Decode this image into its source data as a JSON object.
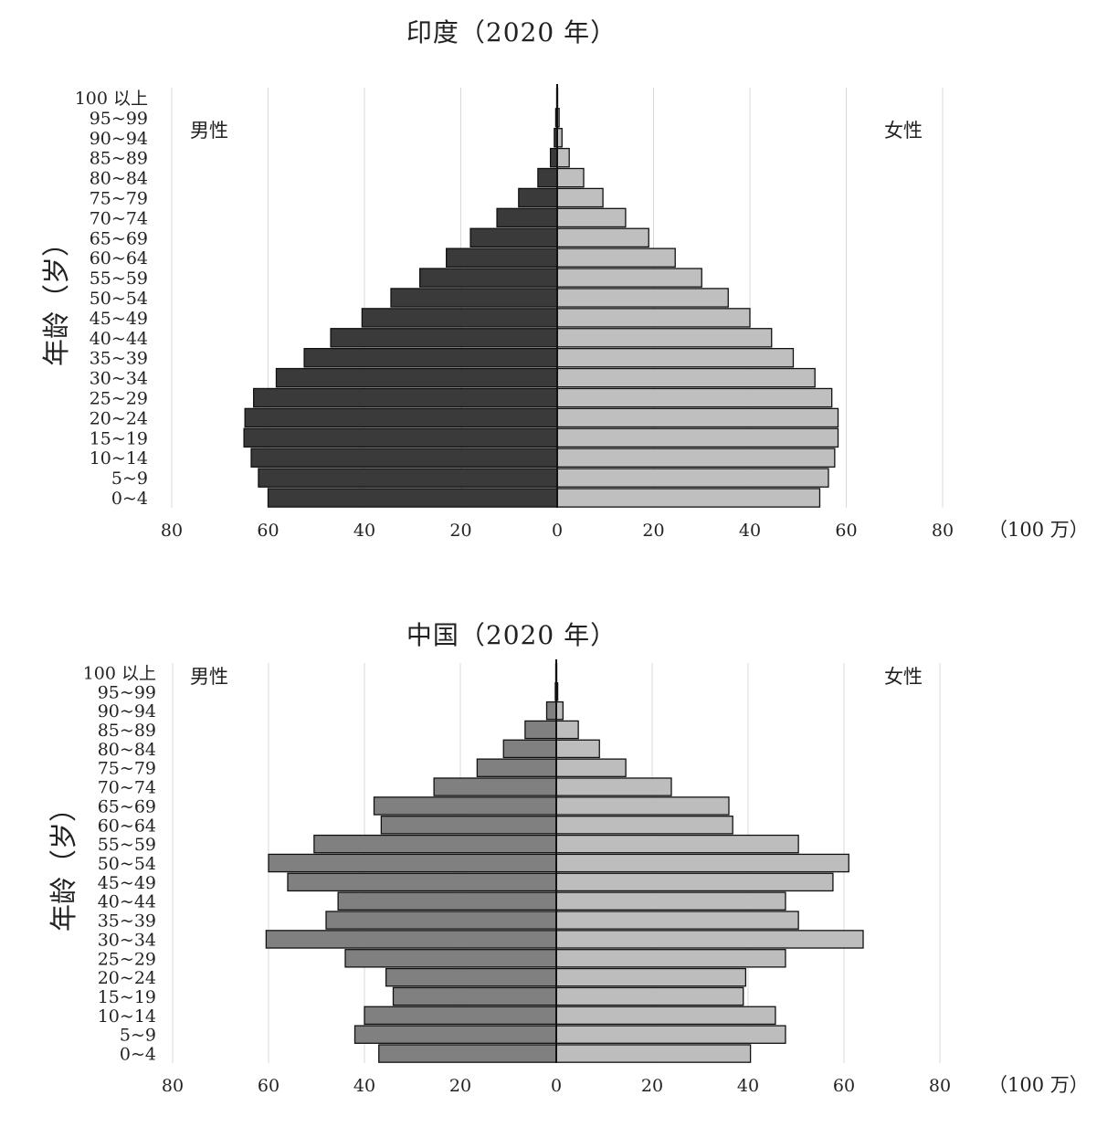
{
  "chart_data": [
    {
      "type": "bar",
      "orientation": "horizontal-population-pyramid",
      "title": "印度（2020 年）",
      "ylabel": "年龄（岁）",
      "unit": "（100 万）",
      "left_label": "男性",
      "right_label": "女性",
      "xlim": [
        -80,
        80
      ],
      "x_ticks": [
        "80",
        "60",
        "40",
        "20",
        "0",
        "20",
        "40",
        "60",
        "80"
      ],
      "grid": true,
      "categories": [
        "100 以上",
        "95~99",
        "90~94",
        "85~89",
        "80~84",
        "75~79",
        "70~74",
        "65~69",
        "60~64",
        "55~59",
        "50~54",
        "45~49",
        "40~44",
        "35~39",
        "30~34",
        "25~29",
        "20~24",
        "15~19",
        "10~14",
        "5~9",
        "0~4"
      ],
      "series": [
        {
          "name": "男性",
          "color": "#3a3a3a",
          "values": [
            0.1,
            0.3,
            0.6,
            1.4,
            4,
            8,
            12.5,
            18,
            23,
            28.5,
            34.5,
            40.5,
            47,
            52.5,
            58.3,
            63,
            64.8,
            65,
            63.5,
            62,
            60
          ]
        },
        {
          "name": "女性",
          "color": "#bfbfbf",
          "values": [
            0.1,
            0.4,
            1,
            2.5,
            5.5,
            9.5,
            14.2,
            19,
            24.5,
            30,
            35.5,
            40,
            44.5,
            49,
            53.5,
            57,
            58.3,
            58.3,
            57.6,
            56.3,
            54.5
          ]
        }
      ]
    },
    {
      "type": "bar",
      "orientation": "horizontal-population-pyramid",
      "title": "中国（2020 年）",
      "ylabel": "年龄（岁）",
      "unit": "（100 万）",
      "left_label": "男性",
      "right_label": "女性",
      "xlim": [
        -80,
        80
      ],
      "x_ticks": [
        "80",
        "60",
        "40",
        "20",
        "0",
        "20",
        "40",
        "60",
        "80"
      ],
      "grid": true,
      "categories": [
        "100 以上",
        "95~99",
        "90~94",
        "85~89",
        "80~84",
        "75~79",
        "70~74",
        "65~69",
        "60~64",
        "55~59",
        "50~54",
        "45~49",
        "40~44",
        "35~39",
        "30~34",
        "25~29",
        "20~24",
        "15~19",
        "10~14",
        "5~9",
        "0~4"
      ],
      "series": [
        {
          "name": "男性",
          "color": "#808080",
          "values": [
            0.1,
            0.2,
            2,
            6.5,
            11,
            16.5,
            25.5,
            38,
            36.5,
            50.5,
            60,
            56,
            45.5,
            48,
            60.5,
            44,
            35.5,
            34,
            40,
            42,
            37
          ]
        },
        {
          "name": "女性",
          "color": "#bdbdbd",
          "values": [
            0.1,
            0.3,
            1.4,
            4.6,
            9,
            14.5,
            24,
            36,
            36.8,
            50.5,
            61,
            57.7,
            47.8,
            50.5,
            64,
            47.8,
            39.5,
            39,
            45.7,
            47.8,
            40.5
          ]
        }
      ]
    }
  ]
}
